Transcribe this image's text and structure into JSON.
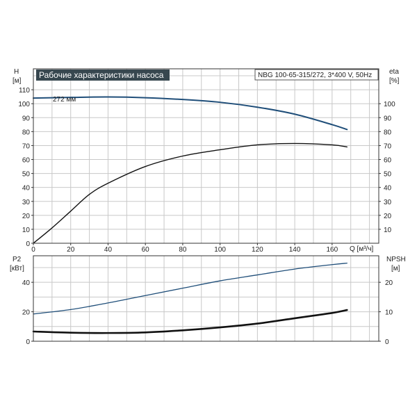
{
  "chart_data": [
    {
      "type": "line",
      "title": "Рабочие характеристики насоса",
      "subtitle": "NBG 100-65-315/272, 3*400 V, 50Hz",
      "annotation": "272 мм",
      "xlabel": "Q [м³/ч]",
      "ylabel_left": [
        "H",
        "[м]"
      ],
      "ylabel_right": [
        "eta",
        "[%]"
      ],
      "xlim": [
        0,
        185
      ],
      "ylim_left": [
        0,
        125
      ],
      "ylim_right": [
        0,
        125
      ],
      "x_ticks": [
        "0",
        "20",
        "40",
        "60",
        "80",
        "100",
        "120",
        "140",
        "160"
      ],
      "y_ticks_left": [
        "0",
        "10",
        "20",
        "30",
        "40",
        "50",
        "60",
        "70",
        "80",
        "90",
        "100",
        "110"
      ],
      "y_ticks_right": [
        "10",
        "20",
        "30",
        "40",
        "50",
        "60",
        "70",
        "80",
        "90",
        "100"
      ],
      "grid": true,
      "series": [
        {
          "name": "H",
          "color": "#1f4e79",
          "axis": "left",
          "x": [
            0,
            20,
            40,
            60,
            80,
            100,
            120,
            140,
            160,
            168
          ],
          "y": [
            104,
            104.5,
            104.8,
            104.3,
            103,
            101,
            97.5,
            92.5,
            85,
            81.5
          ]
        },
        {
          "name": "eta",
          "color": "#111111",
          "axis": "right",
          "x": [
            0,
            10,
            20,
            30,
            40,
            60,
            80,
            100,
            120,
            140,
            160,
            168
          ],
          "y": [
            0,
            11,
            23,
            35,
            43,
            55,
            62.5,
            67,
            70.5,
            71.5,
            70.5,
            69
          ]
        }
      ]
    },
    {
      "type": "line",
      "ylabel_left": [
        "P2",
        "[кВт]"
      ],
      "ylabel_right": [
        "NPSH",
        "[м]"
      ],
      "xlim": [
        0,
        185
      ],
      "ylim_left": [
        0,
        58
      ],
      "ylim_right": [
        0,
        29
      ],
      "y_ticks_left": [
        "0",
        "20",
        "40"
      ],
      "y_ticks_right": [
        "0",
        "10",
        "20"
      ],
      "grid": true,
      "series": [
        {
          "name": "P2",
          "color": "#1f4e79",
          "axis": "left",
          "x": [
            0,
            20,
            40,
            60,
            80,
            100,
            120,
            140,
            160,
            168
          ],
          "y": [
            18.5,
            21.5,
            26,
            31,
            36,
            41,
            45,
            49,
            52,
            53
          ]
        },
        {
          "name": "NPSH",
          "color": "#111111",
          "axis": "right",
          "x": [
            0,
            20,
            40,
            60,
            80,
            100,
            120,
            140,
            160,
            168
          ],
          "y": [
            3.3,
            2.9,
            2.8,
            3,
            3.7,
            4.7,
            6,
            7.8,
            9.6,
            10.6
          ]
        }
      ]
    }
  ]
}
